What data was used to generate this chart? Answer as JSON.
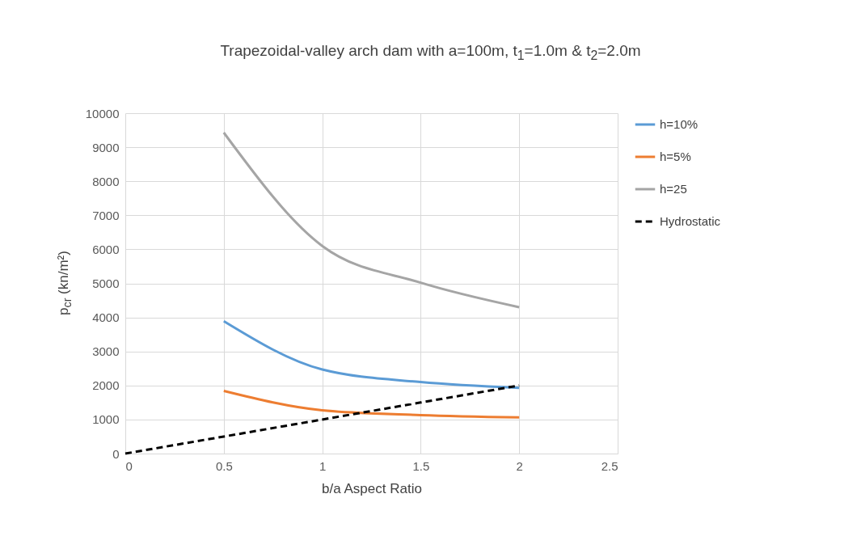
{
  "chart_data": {
    "type": "line",
    "title": "Trapezoidal-valley arch dam with a=100m, t$_{1}$=1.0m & t$_{2}$=2.0m",
    "xlabel": "b/a Aspect Ratio",
    "ylabel": "p$_{cr}$ (kn/m²)",
    "x": [
      0.5,
      1,
      1.5,
      2
    ],
    "series": [
      {
        "name": "h=10%",
        "color": "#5b9bd5",
        "values": [
          3890,
          2470,
          2100,
          1930
        ]
      },
      {
        "name": "h=5%",
        "color": "#ed7d31",
        "values": [
          1840,
          1270,
          1130,
          1060
        ]
      },
      {
        "name": "h=25",
        "color": "#a5a5a5",
        "values": [
          9430,
          6100,
          5020,
          4300
        ]
      },
      {
        "name": "Hydrostatic",
        "color": "#000000",
        "line_style": "dashed",
        "x": [
          0,
          0.5,
          1,
          1.5,
          2
        ],
        "values": [
          0,
          500,
          1000,
          1500,
          2000
        ]
      }
    ],
    "xlim": [
      0,
      2.5
    ],
    "xticks": [
      0,
      0.5,
      1,
      1.5,
      2,
      2.5
    ],
    "ylim": [
      0,
      10000
    ],
    "yticks": [
      0,
      1000,
      2000,
      3000,
      4000,
      5000,
      6000,
      7000,
      8000,
      9000,
      10000
    ],
    "grid": true,
    "legend": "right",
    "marker": "none",
    "line_style": "solid"
  }
}
